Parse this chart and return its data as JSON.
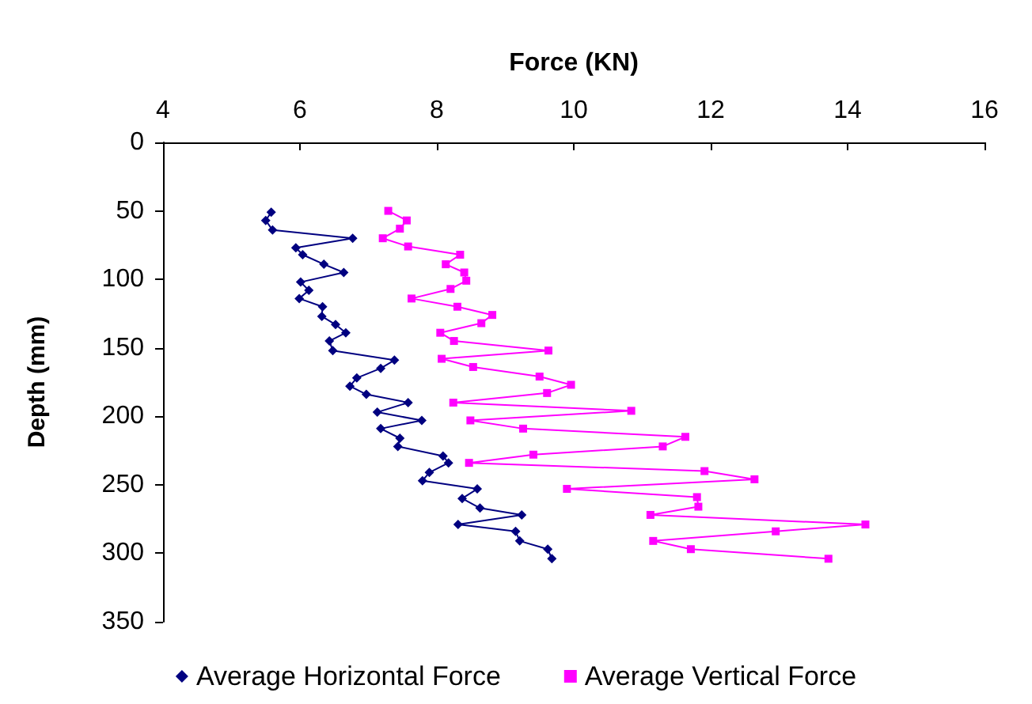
{
  "chart_data": {
    "type": "line",
    "xlabel": "Force (KN)",
    "ylabel": "Depth (mm)",
    "xlim": [
      4,
      16
    ],
    "xticks": [
      4,
      6,
      8,
      10,
      12,
      14,
      16
    ],
    "ylim": [
      350,
      0
    ],
    "yticks": [
      0,
      50,
      100,
      150,
      200,
      250,
      300,
      350
    ],
    "grid": false,
    "legend": "bottom",
    "series": [
      {
        "name": "Average Horizontal Force",
        "color": "#000080",
        "marker": "diamond",
        "x": [
          5.58,
          5.5,
          5.6,
          6.77,
          5.94,
          6.04,
          6.35,
          6.64,
          6.01,
          6.13,
          5.99,
          6.33,
          6.32,
          6.52,
          6.67,
          6.43,
          6.48,
          7.38,
          7.18,
          6.83,
          6.73,
          6.97,
          7.58,
          7.13,
          7.78,
          7.18,
          7.46,
          7.43,
          8.09,
          8.17,
          7.89,
          7.79,
          8.59,
          8.37,
          8.63,
          9.24,
          8.31,
          9.15,
          9.21,
          9.62,
          9.68
        ],
        "values": [
          51,
          57,
          64,
          70,
          77,
          82,
          89,
          95,
          102,
          108,
          114,
          120,
          127,
          133,
          139,
          145,
          152,
          159,
          165,
          172,
          178,
          184,
          190,
          197,
          203,
          209,
          216,
          222,
          229,
          234,
          241,
          247,
          253,
          260,
          267,
          272,
          279,
          284,
          291,
          297,
          304
        ]
      },
      {
        "name": "Average Vertical Force",
        "color": "#ff00ff",
        "marker": "square",
        "x": [
          7.29,
          7.56,
          7.46,
          7.21,
          7.58,
          8.34,
          8.13,
          8.4,
          8.43,
          8.2,
          7.63,
          8.3,
          8.81,
          8.65,
          8.05,
          8.25,
          9.63,
          8.07,
          8.53,
          9.5,
          9.96,
          9.61,
          8.24,
          10.84,
          8.49,
          9.26,
          11.63,
          11.3,
          9.41,
          8.47,
          11.91,
          12.64,
          9.9,
          11.8,
          11.82,
          11.12,
          14.26,
          12.95,
          11.16,
          11.71,
          13.72
        ],
        "values": [
          50,
          57,
          63,
          70,
          76,
          82,
          89,
          95,
          101,
          107,
          114,
          120,
          126,
          132,
          139,
          145,
          152,
          158,
          164,
          171,
          177,
          183,
          190,
          196,
          203,
          209,
          215,
          222,
          228,
          234,
          240,
          246,
          253,
          259,
          266,
          272,
          279,
          284,
          291,
          297,
          304
        ]
      }
    ]
  }
}
